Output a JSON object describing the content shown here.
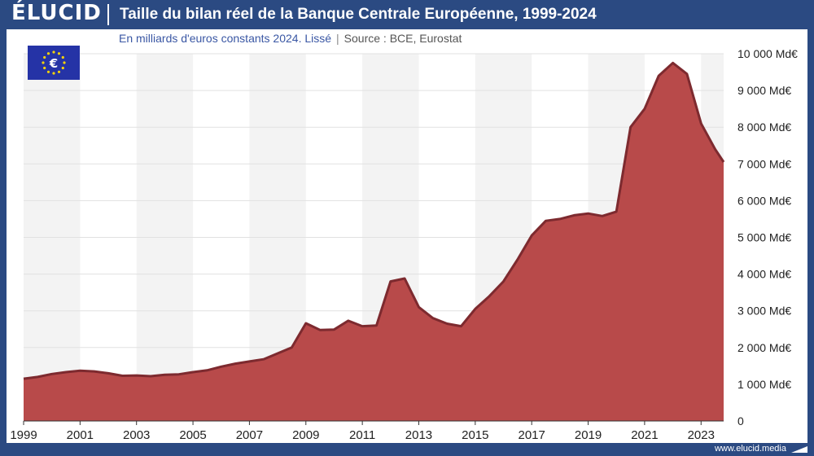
{
  "header": {
    "logo": "ÉLUCID",
    "title": "Taille du bilan réel de la Banque Centrale Européenne, 1999-2024"
  },
  "subtitle": {
    "text": "En milliards d'euros constants 2024. Lissé",
    "separator": "|",
    "source": "Source : BCE, Eurostat"
  },
  "footer": {
    "url": "www.elucid.media"
  },
  "flag_icon": "eu-flag-euro-icon",
  "colors": {
    "area_fill": "#b84a4a",
    "area_line": "#7d2a2f",
    "brand": "#2b4a82",
    "band": "#f3f3f3"
  },
  "chart_data": {
    "type": "area",
    "title": "Taille du bilan réel de la Banque Centrale Européenne, 1999-2024",
    "subtitle": "En milliards d'euros constants 2024. Lissé",
    "ylabel": "",
    "xlabel": "",
    "xlim": [
      1999,
      2023.8
    ],
    "ylim": [
      0,
      10000
    ],
    "x_ticks": [
      "1999",
      "2001",
      "2003",
      "2005",
      "2007",
      "2009",
      "2011",
      "2013",
      "2015",
      "2017",
      "2019",
      "2021",
      "2023"
    ],
    "y_ticks": [
      "0",
      "1 000 Md€",
      "2 000 Md€",
      "3 000 Md€",
      "4 000 Md€",
      "5 000 Md€",
      "6 000 Md€",
      "7 000 Md€",
      "8 000 Md€",
      "9 000 Md€",
      "10 000 Md€"
    ],
    "grid": true,
    "series": [
      {
        "x": [
          1999,
          1999.5,
          2000,
          2000.5,
          2001,
          2001.5,
          2002,
          2002.5,
          2003,
          2003.5,
          2004,
          2004.5,
          2005,
          2005.5,
          2006,
          2006.5,
          2007,
          2007.5,
          2008,
          2008.5,
          2009,
          2009.5,
          2010,
          2010.5,
          2011,
          2011.5,
          2012,
          2012.5,
          2013,
          2013.5,
          2014,
          2014.5,
          2015,
          2015.5,
          2016,
          2016.5,
          2017,
          2017.5,
          2018,
          2018.5,
          2019,
          2019.5,
          2020,
          2020.5,
          2021,
          2021.5,
          2022,
          2022.5,
          2023,
          2023.5,
          2023.8
        ],
        "values": [
          1150,
          1200,
          1280,
          1330,
          1370,
          1350,
          1300,
          1230,
          1240,
          1220,
          1260,
          1270,
          1330,
          1380,
          1480,
          1560,
          1620,
          1680,
          1840,
          2000,
          2660,
          2480,
          2490,
          2730,
          2580,
          2600,
          3800,
          3880,
          3100,
          2800,
          2650,
          2580,
          3050,
          3400,
          3800,
          4400,
          5050,
          5450,
          5500,
          5600,
          5650,
          5580,
          5700,
          8000,
          8500,
          9400,
          9750,
          9450,
          8100,
          7400,
          7050
        ]
      }
    ]
  }
}
